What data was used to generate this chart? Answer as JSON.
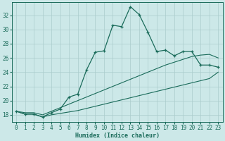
{
  "xlabel": "Humidex (Indice chaleur)",
  "bg_color": "#cce8e8",
  "line_color": "#1a6b5a",
  "grid_color": "#aacccc",
  "xlim": [
    -0.5,
    23.5
  ],
  "ylim": [
    17.0,
    33.8
  ],
  "xticks": [
    0,
    1,
    2,
    3,
    4,
    5,
    6,
    7,
    8,
    9,
    10,
    11,
    12,
    13,
    14,
    15,
    16,
    17,
    18,
    19,
    20,
    21,
    22,
    23
  ],
  "yticks": [
    18,
    20,
    22,
    24,
    26,
    28,
    30,
    32
  ],
  "x": [
    0,
    1,
    2,
    3,
    4,
    5,
    6,
    7,
    8,
    9,
    10,
    11,
    12,
    13,
    14,
    15,
    16,
    17,
    18,
    19,
    20,
    21,
    22,
    23
  ],
  "y_main": [
    18.5,
    18.1,
    18.1,
    17.7,
    18.3,
    18.8,
    20.5,
    20.9,
    24.3,
    26.8,
    27.0,
    30.6,
    30.4,
    33.2,
    32.1,
    29.6,
    26.9,
    27.1,
    26.3,
    26.9,
    26.9,
    25.0,
    25.0,
    24.7
  ],
  "y_upper": [
    18.5,
    18.3,
    18.3,
    18.0,
    18.5,
    19.0,
    19.5,
    20.0,
    20.5,
    21.0,
    21.5,
    22.0,
    22.5,
    23.0,
    23.5,
    24.0,
    24.5,
    25.0,
    25.4,
    25.8,
    26.2,
    26.4,
    26.5,
    26.0
  ],
  "y_lower": [
    18.5,
    18.1,
    18.1,
    17.7,
    18.0,
    18.2,
    18.4,
    18.6,
    18.9,
    19.2,
    19.5,
    19.8,
    20.1,
    20.4,
    20.7,
    21.0,
    21.3,
    21.6,
    21.9,
    22.2,
    22.5,
    22.8,
    23.1,
    24.0
  ]
}
